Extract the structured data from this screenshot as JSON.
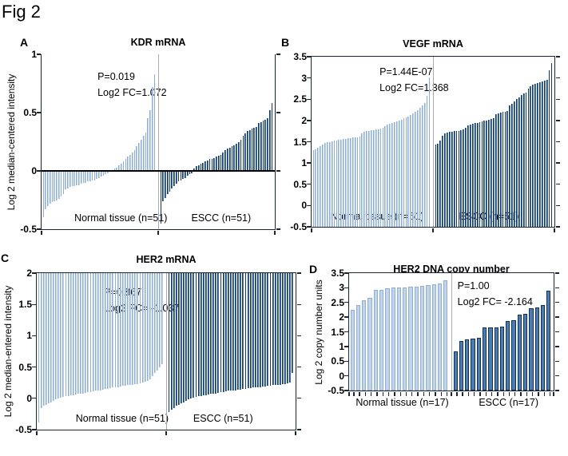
{
  "figure": {
    "label": "Fig 2"
  },
  "colors": {
    "light_fill": "#c1d5ea",
    "light_edge": "#8fafd2",
    "dark_fill": "#4a7db3",
    "dark_edge": "#16365c",
    "frame": "#1c2433",
    "divider": "#ababab",
    "zero_line": "#000000"
  },
  "chart_data": [
    {
      "type": "bar",
      "panel_label": "A",
      "title": "KDR mRNA",
      "ylabel": "Log 2 median-centered intensity",
      "ylim": [
        -0.5,
        1
      ],
      "yticks": [
        "1",
        "0.5",
        "0",
        "-0.5"
      ],
      "baseline": "zero",
      "grid": false,
      "annotation": [
        "P=0.019",
        "Log2  FC=1.072"
      ],
      "groups": [
        {
          "label": "Normal tissue (n=51)",
          "shade": "light",
          "values": [
            -0.4,
            -0.33,
            -0.3,
            -0.28,
            -0.27,
            -0.26,
            -0.25,
            -0.24,
            -0.22,
            -0.2,
            -0.16,
            -0.15,
            -0.14,
            -0.13,
            -0.13,
            -0.12,
            -0.12,
            -0.11,
            -0.1,
            -0.1,
            -0.09,
            -0.09,
            -0.08,
            -0.08,
            -0.07,
            -0.06,
            -0.05,
            -0.04,
            -0.03,
            -0.02,
            -0.01,
            0.01,
            0.02,
            0.03,
            0.05,
            0.06,
            0.08,
            0.1,
            0.12,
            0.14,
            0.16,
            0.18,
            0.21,
            0.24,
            0.27,
            0.3,
            0.33,
            0.45,
            0.52,
            0.72,
            0.83
          ]
        },
        {
          "label": "ESCC (n=51)",
          "shade": "dark",
          "values": [
            -0.45,
            -0.26,
            -0.23,
            -0.2,
            -0.18,
            -0.15,
            -0.13,
            -0.11,
            -0.09,
            -0.08,
            -0.07,
            -0.06,
            -0.04,
            -0.03,
            -0.02,
            0.02,
            0.04,
            0.05,
            0.06,
            0.07,
            0.08,
            0.09,
            0.1,
            0.1,
            0.11,
            0.12,
            0.13,
            0.14,
            0.16,
            0.18,
            0.19,
            0.2,
            0.21,
            0.22,
            0.23,
            0.25,
            0.27,
            0.3,
            0.32,
            0.34,
            0.35,
            0.36,
            0.37,
            0.38,
            0.41,
            0.42,
            0.43,
            0.44,
            0.45,
            0.52,
            0.58
          ]
        }
      ]
    },
    {
      "type": "bar",
      "panel_label": "B",
      "title": "VEGF mRNA",
      "ylabel": "",
      "ylim": [
        -0.5,
        3.5
      ],
      "yticks": [
        "3.5",
        "3",
        "2.5",
        "2",
        "1.5",
        "1",
        "0.5",
        "0",
        "-0.5"
      ],
      "baseline": "bottom",
      "grid": false,
      "annotation": [
        "P=1.44E-07",
        "Log2  FC=1.368"
      ],
      "groups": [
        {
          "label": "Normal tissue (n=51)",
          "shade": "light",
          "values": [
            1.3,
            1.33,
            1.36,
            1.4,
            1.44,
            1.47,
            1.49,
            1.5,
            1.51,
            1.52,
            1.53,
            1.54,
            1.55,
            1.56,
            1.57,
            1.58,
            1.59,
            1.6,
            1.6,
            1.61,
            1.62,
            1.7,
            1.73,
            1.75,
            1.76,
            1.77,
            1.78,
            1.79,
            1.8,
            1.81,
            1.83,
            1.86,
            1.9,
            1.92,
            1.94,
            1.96,
            1.98,
            2.0,
            2.02,
            2.05,
            2.08,
            2.1,
            2.13,
            2.17,
            2.2,
            2.25,
            2.3,
            2.35,
            2.42,
            2.58,
            3.02
          ]
        },
        {
          "label": "ESCC (n=51)",
          "shade": "dark",
          "values": [
            1.43,
            1.46,
            1.52,
            1.65,
            1.7,
            1.72,
            1.73,
            1.74,
            1.75,
            1.75,
            1.76,
            1.78,
            1.8,
            1.83,
            1.88,
            1.9,
            1.92,
            1.94,
            1.95,
            1.96,
            1.98,
            2.0,
            2.0,
            2.02,
            2.03,
            2.05,
            2.15,
            2.16,
            2.18,
            2.2,
            2.21,
            2.23,
            2.35,
            2.4,
            2.45,
            2.5,
            2.55,
            2.6,
            2.63,
            2.66,
            2.75,
            2.8,
            2.84,
            2.86,
            2.88,
            2.9,
            2.92,
            2.94,
            2.96,
            3.18,
            3.35
          ]
        }
      ]
    },
    {
      "type": "bar",
      "panel_label": "C",
      "title": "HER2  mRNA",
      "ylabel": "Log 2 median-entered intensity",
      "ylim": [
        -0.5,
        2
      ],
      "yticks": [
        "2",
        "1.5",
        "1",
        "0.5",
        "0",
        "-0.5"
      ],
      "baseline": "top",
      "grid": false,
      "annotation": [
        "P=0.867",
        "Log2  FC= -1.037"
      ],
      "groups": [
        {
          "label": "Normal tissue (n=51)",
          "shade": "light",
          "values": [
            -0.38,
            -0.15,
            -0.12,
            -0.1,
            -0.08,
            -0.06,
            -0.04,
            -0.02,
            0.0,
            0.01,
            0.02,
            0.03,
            0.04,
            0.05,
            0.05,
            0.06,
            0.07,
            0.08,
            0.08,
            0.09,
            0.1,
            0.1,
            0.11,
            0.12,
            0.12,
            0.13,
            0.14,
            0.15,
            0.15,
            0.16,
            0.17,
            0.18,
            0.18,
            0.19,
            0.2,
            0.2,
            0.21,
            0.22,
            0.22,
            0.23,
            0.23,
            0.24,
            0.25,
            0.26,
            0.28,
            0.3,
            0.35,
            0.4,
            0.45,
            0.5,
            0.55
          ]
        },
        {
          "label": "ESCC (n=51)",
          "shade": "dark",
          "values": [
            -0.22,
            -0.18,
            -0.15,
            -0.12,
            -0.1,
            -0.08,
            -0.06,
            -0.04,
            -0.02,
            0.0,
            0.01,
            0.02,
            0.03,
            0.04,
            0.05,
            0.05,
            0.06,
            0.07,
            0.08,
            0.08,
            0.09,
            0.1,
            0.1,
            0.11,
            0.12,
            0.12,
            0.13,
            0.13,
            0.14,
            0.14,
            0.15,
            0.15,
            0.16,
            0.16,
            0.17,
            0.17,
            0.18,
            0.18,
            0.19,
            0.19,
            0.2,
            0.2,
            0.21,
            0.21,
            0.22,
            0.22,
            0.23,
            0.23,
            0.24,
            0.25,
            0.4
          ]
        }
      ]
    },
    {
      "type": "bar",
      "panel_label": "D",
      "title": "HER2  DNA copy number",
      "ylabel": "Log 2 copy number units",
      "ylim": [
        -0.5,
        3.5
      ],
      "yticks": [
        "3.5",
        "3",
        "2.5",
        "2",
        "1.5",
        "1",
        "0.5",
        "0",
        "-0.5"
      ],
      "baseline": "bottom",
      "grid": false,
      "bottom_ticks": "per-bar",
      "labels_below_axis": true,
      "annotation": [
        "P=1.00",
        "Log2  FC= -2.164"
      ],
      "groups": [
        {
          "label": "Normal tissue (n=17)",
          "shade": "light",
          "values": [
            2.25,
            2.42,
            2.58,
            2.65,
            2.92,
            2.94,
            2.98,
            3.0,
            3.0,
            3.02,
            3.04,
            3.05,
            3.07,
            3.1,
            3.13,
            3.15,
            3.26
          ]
        },
        {
          "label": "ESCC (n=17)",
          "shade": "dark",
          "values": [
            0.82,
            1.2,
            1.25,
            1.27,
            1.3,
            1.64,
            1.65,
            1.66,
            1.68,
            1.87,
            1.9,
            2.08,
            2.1,
            2.3,
            2.33,
            2.42,
            2.9
          ]
        }
      ]
    }
  ]
}
